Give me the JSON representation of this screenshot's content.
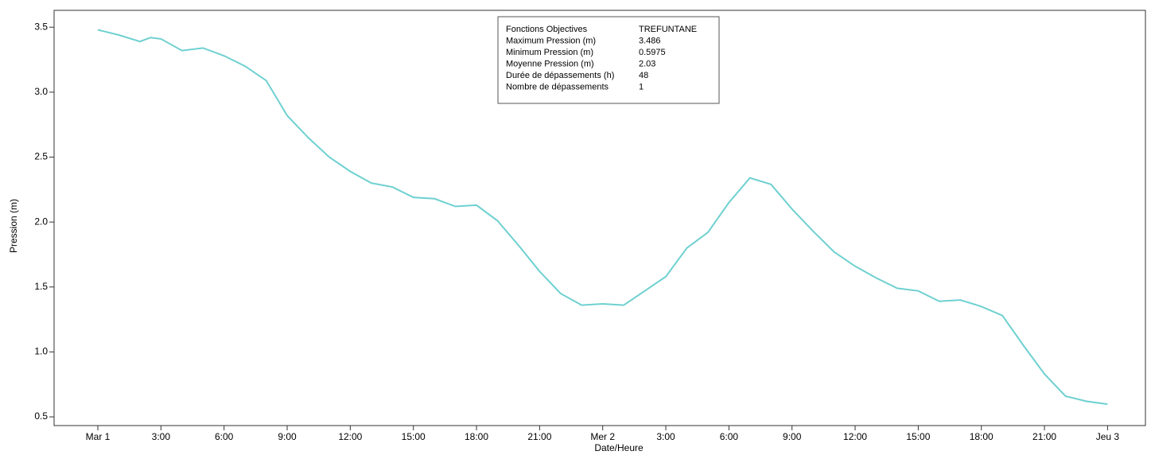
{
  "chart_data": {
    "type": "line",
    "x_label": "Date/Heure",
    "y_label": "Pression (m)",
    "x": [
      0,
      1,
      2,
      2.5,
      3,
      4,
      5,
      6,
      7,
      8,
      9,
      10,
      11,
      12,
      13,
      14,
      15,
      16,
      17,
      18,
      19,
      20,
      21,
      22,
      23,
      24,
      25,
      26,
      27,
      28,
      29,
      30,
      31,
      32,
      33,
      34,
      35,
      36,
      37,
      38,
      39,
      40,
      41,
      42,
      43,
      44,
      45,
      46,
      47,
      48
    ],
    "series": [
      {
        "color": "#6fd0d0",
        "values": [
          3.48,
          3.44,
          3.39,
          3.42,
          3.41,
          3.32,
          3.34,
          3.28,
          3.2,
          3.09,
          2.82,
          2.65,
          2.5,
          2.39,
          2.3,
          2.27,
          2.19,
          2.18,
          2.12,
          2.13,
          2.01,
          1.82,
          1.62,
          1.45,
          1.36,
          1.37,
          1.36,
          1.47,
          1.58,
          1.8,
          1.92,
          2.15,
          2.34,
          2.29,
          2.1,
          1.93,
          1.77,
          1.66,
          1.57,
          1.49,
          1.47,
          1.39,
          1.4,
          1.35,
          1.28,
          1.05,
          0.83,
          0.66,
          0.62,
          0.5975
        ]
      }
    ],
    "xlim": [
      -2.08,
      49.8
    ],
    "ylim": [
      0.433,
      3.63
    ],
    "xticks": [
      {
        "value": 0,
        "label": "Mar 1"
      },
      {
        "value": 3,
        "label": "3:00"
      },
      {
        "value": 6,
        "label": "6:00"
      },
      {
        "value": 9,
        "label": "9:00"
      },
      {
        "value": 12,
        "label": "12:00"
      },
      {
        "value": 15,
        "label": "15:00"
      },
      {
        "value": 18,
        "label": "18:00"
      },
      {
        "value": 21,
        "label": "21:00"
      },
      {
        "value": 24,
        "label": "Mer 2"
      },
      {
        "value": 27,
        "label": "3:00"
      },
      {
        "value": 30,
        "label": "6:00"
      },
      {
        "value": 33,
        "label": "9:00"
      },
      {
        "value": 36,
        "label": "12:00"
      },
      {
        "value": 39,
        "label": "15:00"
      },
      {
        "value": 42,
        "label": "18:00"
      },
      {
        "value": 45,
        "label": "21:00"
      },
      {
        "value": 48,
        "label": "Jeu 3"
      }
    ],
    "yticks": [
      0.5,
      {
        "value": 1,
        "label": "1.0"
      },
      1.5,
      {
        "value": 2,
        "label": "2.0"
      },
      2.5,
      {
        "value": 3,
        "label": "3.0"
      },
      3.5
    ],
    "info_box": {
      "header": [
        "Fonctions Objectives",
        "TREFUNTANE"
      ],
      "rows": [
        [
          "Maximum Pression (m)",
          3.486
        ],
        [
          "Minimum Pression (m)",
          0.5975
        ],
        [
          "Moyenne Pression (m)",
          2.03
        ],
        [
          "Durée de dépassements (h)",
          48
        ],
        [
          "Nombre de dépassements",
          1
        ]
      ]
    }
  }
}
